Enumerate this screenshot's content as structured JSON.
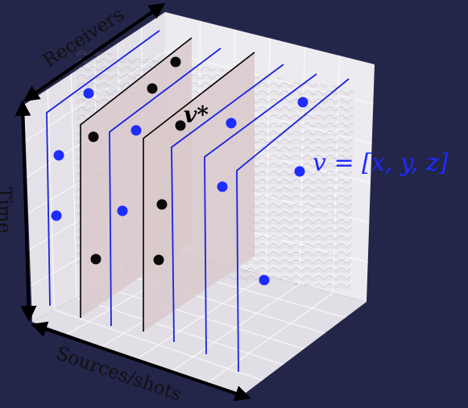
{
  "labels": {
    "receivers": "Receivers",
    "time": "Time",
    "sources": "Sources/shots",
    "v_star": "v*",
    "v_def": "v = [x, y, z]"
  },
  "colors": {
    "background": "#232549",
    "cube_face": "#ecebef",
    "grid": "#ffffff",
    "blue_trace": "#1b22e0",
    "blue_dot": "#1f2cff",
    "black_dot": "#0a0a0a",
    "black_plane": "#d9c9cb",
    "wiggle": "#8a7fb0"
  },
  "icons": {
    "axis_arrow": "double-headed-arrow"
  }
}
